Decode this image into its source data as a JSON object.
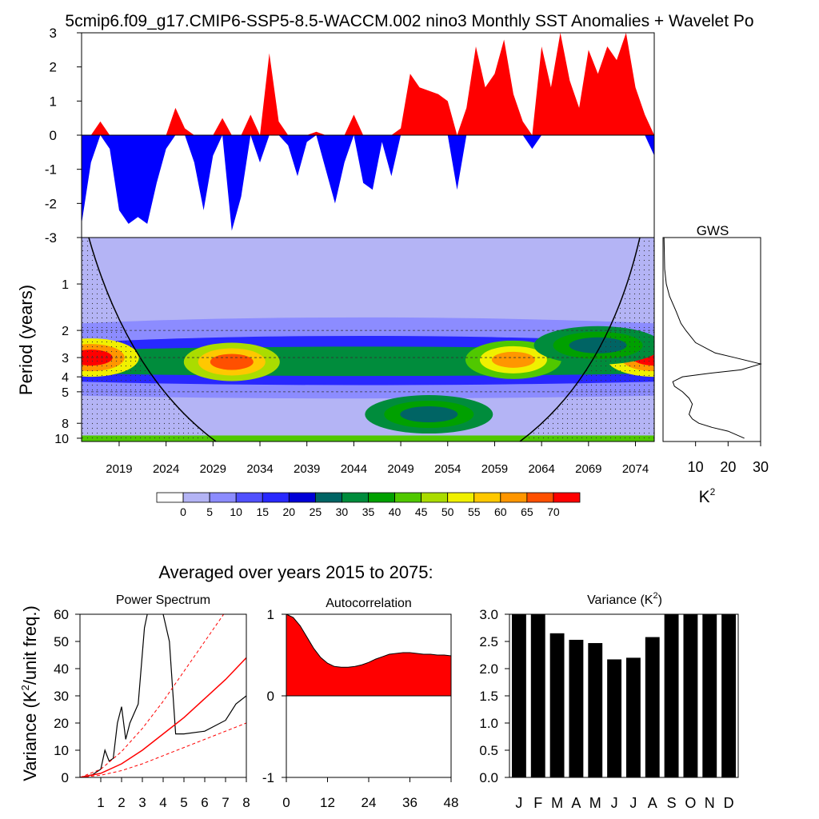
{
  "title": "5cmip6.f09_g17.CMIP6-SSP5-8.5-WACCM.002 nino3 Monthly SST Anomalies + Wavelet Po",
  "averaged_title": "Averaged over years 2015 to 2075:",
  "colors": {
    "positive": "#ff0000",
    "negative": "#0000ff",
    "bar": "#000000",
    "fit": "#ff0000"
  },
  "chart_data": [
    {
      "id": "sst-anomaly",
      "type": "area",
      "ylim": [
        -3,
        3
      ],
      "yticks": [
        -3,
        -2,
        -1,
        0,
        1,
        2,
        3
      ],
      "xlim": [
        2015,
        2076
      ],
      "x": [
        2015,
        2016,
        2017,
        2018,
        2019,
        2020,
        2021,
        2022,
        2023,
        2024,
        2025,
        2026,
        2027,
        2028,
        2029,
        2030,
        2031,
        2032,
        2033,
        2034,
        2035,
        2036,
        2037,
        2038,
        2039,
        2040,
        2041,
        2042,
        2043,
        2044,
        2045,
        2046,
        2047,
        2048,
        2049,
        2050,
        2051,
        2052,
        2053,
        2054,
        2055,
        2056,
        2057,
        2058,
        2059,
        2060,
        2061,
        2062,
        2063,
        2064,
        2065,
        2066,
        2067,
        2068,
        2069,
        2070,
        2071,
        2072,
        2073,
        2074,
        2075,
        2076
      ],
      "y": [
        -2.6,
        -0.8,
        0.4,
        -0.4,
        -2.2,
        -2.6,
        -2.4,
        -2.6,
        -1.4,
        -0.4,
        0.8,
        0.2,
        -0.8,
        -2.2,
        -0.6,
        0.5,
        -2.8,
        -1.8,
        0.6,
        -0.8,
        2.4,
        0.4,
        -0.3,
        -1.2,
        -0.2,
        0.1,
        -1.0,
        -2.0,
        -0.8,
        0.6,
        -1.4,
        -1.6,
        -0.2,
        -1.2,
        0.2,
        1.8,
        1.4,
        1.3,
        1.2,
        1.0,
        -1.6,
        0.8,
        2.6,
        1.4,
        1.8,
        2.8,
        1.2,
        0.4,
        -0.4,
        2.6,
        1.4,
        3.0,
        1.6,
        0.8,
        2.5,
        1.8,
        2.6,
        2.2,
        3.0,
        1.4,
        0.6,
        -0.6
      ]
    },
    {
      "id": "wavelet-power",
      "type": "heatmap",
      "ylabel": "Period (years)",
      "yticks": [
        1,
        2,
        3,
        4,
        5,
        8,
        10
      ],
      "xticks": [
        2019,
        2024,
        2029,
        2034,
        2039,
        2044,
        2049,
        2054,
        2059,
        2064,
        2069,
        2074
      ],
      "ylim": [
        10,
        0.5
      ],
      "xlim": [
        2015,
        2076
      ],
      "bands_years": [
        {
          "x": 2016,
          "period": 3.0,
          "value": 68
        },
        {
          "x": 2031,
          "period": 3.2,
          "value": 66
        },
        {
          "x": 2061,
          "period": 3.1,
          "value": 62
        },
        {
          "x": 2076,
          "period": 3.0,
          "value": 70
        },
        {
          "x": 2052,
          "period": 7.0,
          "value": 25
        },
        {
          "x": 2070,
          "period": 2.5,
          "value": 25
        }
      ],
      "colorbar": {
        "labels": [
          "0",
          "5",
          "10",
          "15",
          "20",
          "25",
          "30",
          "35",
          "40",
          "45",
          "50",
          "55",
          "60",
          "65",
          "70"
        ],
        "colors": [
          "#ffffff",
          "#b4b4f5",
          "#8c8cff",
          "#5050ff",
          "#2828ff",
          "#0000d7",
          "#006464",
          "#008c3c",
          "#00a000",
          "#50c800",
          "#aadc00",
          "#f0f000",
          "#ffc800",
          "#ff9600",
          "#ff5000",
          "#ff0000"
        ]
      }
    },
    {
      "id": "gws",
      "type": "line",
      "title": "GWS",
      "xlabel": "K",
      "xlabel_sup": "2",
      "xticks": [
        10,
        20,
        30
      ],
      "xlim": [
        0,
        30
      ],
      "period": [
        0.5,
        0.8,
        1.0,
        1.2,
        1.5,
        1.8,
        2.0,
        2.4,
        2.8,
        3.0,
        3.3,
        3.6,
        3.8,
        4.0,
        4.3,
        4.6,
        5.0,
        5.5,
        6.0,
        6.5,
        7.0,
        7.5,
        8.0,
        8.5,
        9.0,
        10.0
      ],
      "power": [
        0.3,
        0.5,
        1.0,
        2.0,
        4.0,
        5.5,
        7.0,
        10.0,
        16.0,
        22.0,
        30.0,
        24.0,
        14.0,
        6.0,
        3.0,
        3.5,
        6.0,
        8.0,
        9.0,
        8.5,
        8.0,
        9.0,
        11.0,
        15.0,
        20.0,
        25.0
      ]
    },
    {
      "id": "power-spectrum",
      "type": "line",
      "title": "Power Spectrum",
      "ylabel": "Variance (K",
      "ylabel_sup": "2",
      "ylabel_tail": "/unit freq.)",
      "xticks": [
        1,
        2,
        3,
        4,
        5,
        6,
        7,
        8
      ],
      "yticks": [
        0,
        10,
        20,
        30,
        40,
        50,
        60
      ],
      "xlim": [
        0,
        8
      ],
      "ylim": [
        0,
        60
      ],
      "series": [
        {
          "x": [
            0.0,
            0.6,
            1.0,
            1.2,
            1.4,
            1.6,
            1.8,
            2.0,
            2.2,
            2.4,
            2.8,
            3.1,
            3.4,
            3.6,
            4.0,
            4.3,
            4.6,
            5.0,
            6.0,
            7.0,
            7.5,
            8.0
          ],
          "y": [
            0.0,
            1.0,
            3.0,
            10.0,
            6.0,
            7.0,
            20.0,
            26.0,
            14.0,
            20.0,
            27.0,
            55.0,
            66.0,
            64.0,
            60.0,
            50.0,
            16.0,
            16.0,
            17.0,
            21.0,
            27.0,
            30.0
          ]
        },
        {
          "x": [
            0,
            1,
            2,
            3,
            4,
            5,
            6,
            7,
            8
          ],
          "y": [
            0.0,
            1.5,
            5.0,
            10.0,
            16.0,
            22.0,
            29.0,
            36.0,
            44.0
          ]
        },
        {
          "x": [
            0,
            1,
            2,
            3,
            4,
            5,
            6,
            7,
            8
          ],
          "y": [
            0.0,
            3.0,
            9.5,
            18.0,
            28.0,
            39.0,
            50.0,
            61.0,
            72.0
          ]
        },
        {
          "x": [
            0,
            1,
            2,
            3,
            4,
            5,
            6,
            7,
            8
          ],
          "y": [
            0.0,
            0.8,
            2.5,
            5.0,
            8.0,
            11.0,
            14.0,
            17.0,
            20.0
          ]
        }
      ]
    },
    {
      "id": "autocorrelation",
      "type": "area",
      "title": "Autocorrelation",
      "xticks": [
        0,
        12,
        24,
        36,
        48
      ],
      "yticks": [
        -1,
        0,
        1
      ],
      "xlim": [
        0,
        48
      ],
      "ylim": [
        -1,
        1
      ],
      "x": [
        0,
        2,
        4,
        6,
        8,
        10,
        12,
        14,
        16,
        18,
        20,
        22,
        24,
        26,
        28,
        30,
        32,
        34,
        36,
        38,
        40,
        42,
        44,
        46,
        48
      ],
      "y": [
        1.0,
        0.96,
        0.86,
        0.72,
        0.58,
        0.47,
        0.4,
        0.36,
        0.35,
        0.35,
        0.36,
        0.38,
        0.41,
        0.45,
        0.48,
        0.51,
        0.52,
        0.53,
        0.53,
        0.52,
        0.51,
        0.51,
        0.5,
        0.5,
        0.49
      ]
    },
    {
      "id": "monthly-variance",
      "type": "bar",
      "title": "Variance (K",
      "title_sup": "2",
      "title_tail": ")",
      "categories": [
        "J",
        "F",
        "M",
        "A",
        "M",
        "J",
        "J",
        "A",
        "S",
        "O",
        "N",
        "D"
      ],
      "values": [
        3.0,
        3.0,
        2.65,
        2.53,
        2.47,
        2.17,
        2.2,
        2.58,
        3.0,
        3.0,
        3.0,
        3.0
      ],
      "yticks": [
        "0.0",
        "0.5",
        "1.0",
        "1.5",
        "2.0",
        "2.5",
        "3.0"
      ],
      "ylim": [
        0,
        3
      ]
    }
  ]
}
